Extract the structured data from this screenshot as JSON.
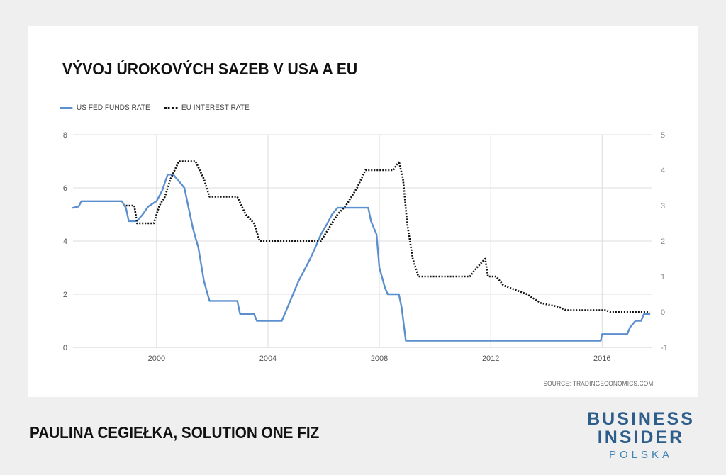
{
  "chart_data": {
    "type": "line",
    "title": "VÝVOJ ÚROKOVÝCH SAZEB V USA A EU",
    "source": "SOURCE: TRADINGECONOMICS.COM",
    "xlim": [
      1997,
      2017.8
    ],
    "x_ticks": [
      "2000",
      "2004",
      "2008",
      "2012",
      "2016"
    ],
    "y_left": {
      "ylim": [
        0,
        8
      ],
      "ticks": [
        "0",
        "2",
        "4",
        "6",
        "8"
      ]
    },
    "y_right": {
      "ylim": [
        -1,
        5
      ],
      "ticks": [
        "-1",
        "0",
        "1",
        "2",
        "3",
        "4",
        "5"
      ]
    },
    "grid": true,
    "legend": "top-left",
    "series": [
      {
        "name": "US FED FUNDS RATE",
        "axis": "left",
        "color": "#5b8fce",
        "style": "solid",
        "x": [
          1997.0,
          1997.2,
          1997.3,
          1998.75,
          1998.9,
          1999.0,
          1999.3,
          1999.5,
          1999.7,
          2000.0,
          2000.2,
          2000.4,
          2000.6,
          2001.0,
          2001.1,
          2001.3,
          2001.5,
          2001.7,
          2001.9,
          2002.1,
          2002.9,
          2003.0,
          2003.5,
          2003.6,
          2004.5,
          2004.7,
          2004.9,
          2005.1,
          2005.3,
          2005.5,
          2005.7,
          2005.9,
          2006.1,
          2006.3,
          2006.5,
          2006.7,
          2007.6,
          2007.7,
          2007.9,
          2008.0,
          2008.2,
          2008.3,
          2008.7,
          2008.8,
          2008.95,
          2015.95,
          2016.0,
          2016.9,
          2017.0,
          2017.2,
          2017.4,
          2017.5,
          2017.7
        ],
        "values": [
          5.25,
          5.3,
          5.5,
          5.5,
          5.25,
          4.75,
          4.75,
          5.0,
          5.3,
          5.5,
          5.9,
          6.5,
          6.5,
          6.0,
          5.5,
          4.5,
          3.75,
          2.5,
          1.75,
          1.75,
          1.75,
          1.25,
          1.25,
          1.0,
          1.0,
          1.5,
          2.0,
          2.5,
          2.9,
          3.3,
          3.75,
          4.25,
          4.6,
          5.0,
          5.25,
          5.25,
          5.25,
          4.75,
          4.25,
          3.0,
          2.25,
          2.0,
          2.0,
          1.5,
          0.25,
          0.25,
          0.5,
          0.5,
          0.75,
          1.0,
          1.0,
          1.25,
          1.25
        ]
      },
      {
        "name": "EU INTEREST RATE",
        "axis": "right",
        "color": "#111111",
        "style": "dotted",
        "x": [
          1998.9,
          1999.2,
          1999.3,
          1999.9,
          2000.1,
          2000.3,
          2000.5,
          2000.8,
          2001.4,
          2001.7,
          2001.9,
          2002.9,
          2003.2,
          2003.5,
          2003.7,
          2005.9,
          2006.1,
          2006.3,
          2006.5,
          2006.8,
          2007.2,
          2007.5,
          2008.5,
          2008.7,
          2008.85,
          2009.0,
          2009.2,
          2009.4,
          2011.25,
          2011.5,
          2011.8,
          2011.9,
          2012.2,
          2012.45,
          2013.3,
          2013.8,
          2014.4,
          2014.7,
          2014.9,
          2016.1,
          2016.3,
          2017.7
        ],
        "values": [
          3.0,
          3.0,
          2.5,
          2.5,
          3.0,
          3.25,
          3.75,
          4.25,
          4.25,
          3.75,
          3.25,
          3.25,
          2.75,
          2.5,
          2.0,
          2.0,
          2.25,
          2.5,
          2.75,
          3.0,
          3.5,
          4.0,
          4.0,
          4.25,
          3.75,
          2.5,
          1.5,
          1.0,
          1.0,
          1.25,
          1.5,
          1.0,
          1.0,
          0.75,
          0.5,
          0.25,
          0.15,
          0.05,
          0.05,
          0.05,
          0.0,
          0.0
        ]
      }
    ]
  },
  "footer": {
    "author": "PAULINA CEGIEŁKA, SOLUTION ONE FIZ",
    "logo_line1": "BUSINESS",
    "logo_line2": "INSIDER",
    "logo_sub": "POLSKA"
  }
}
